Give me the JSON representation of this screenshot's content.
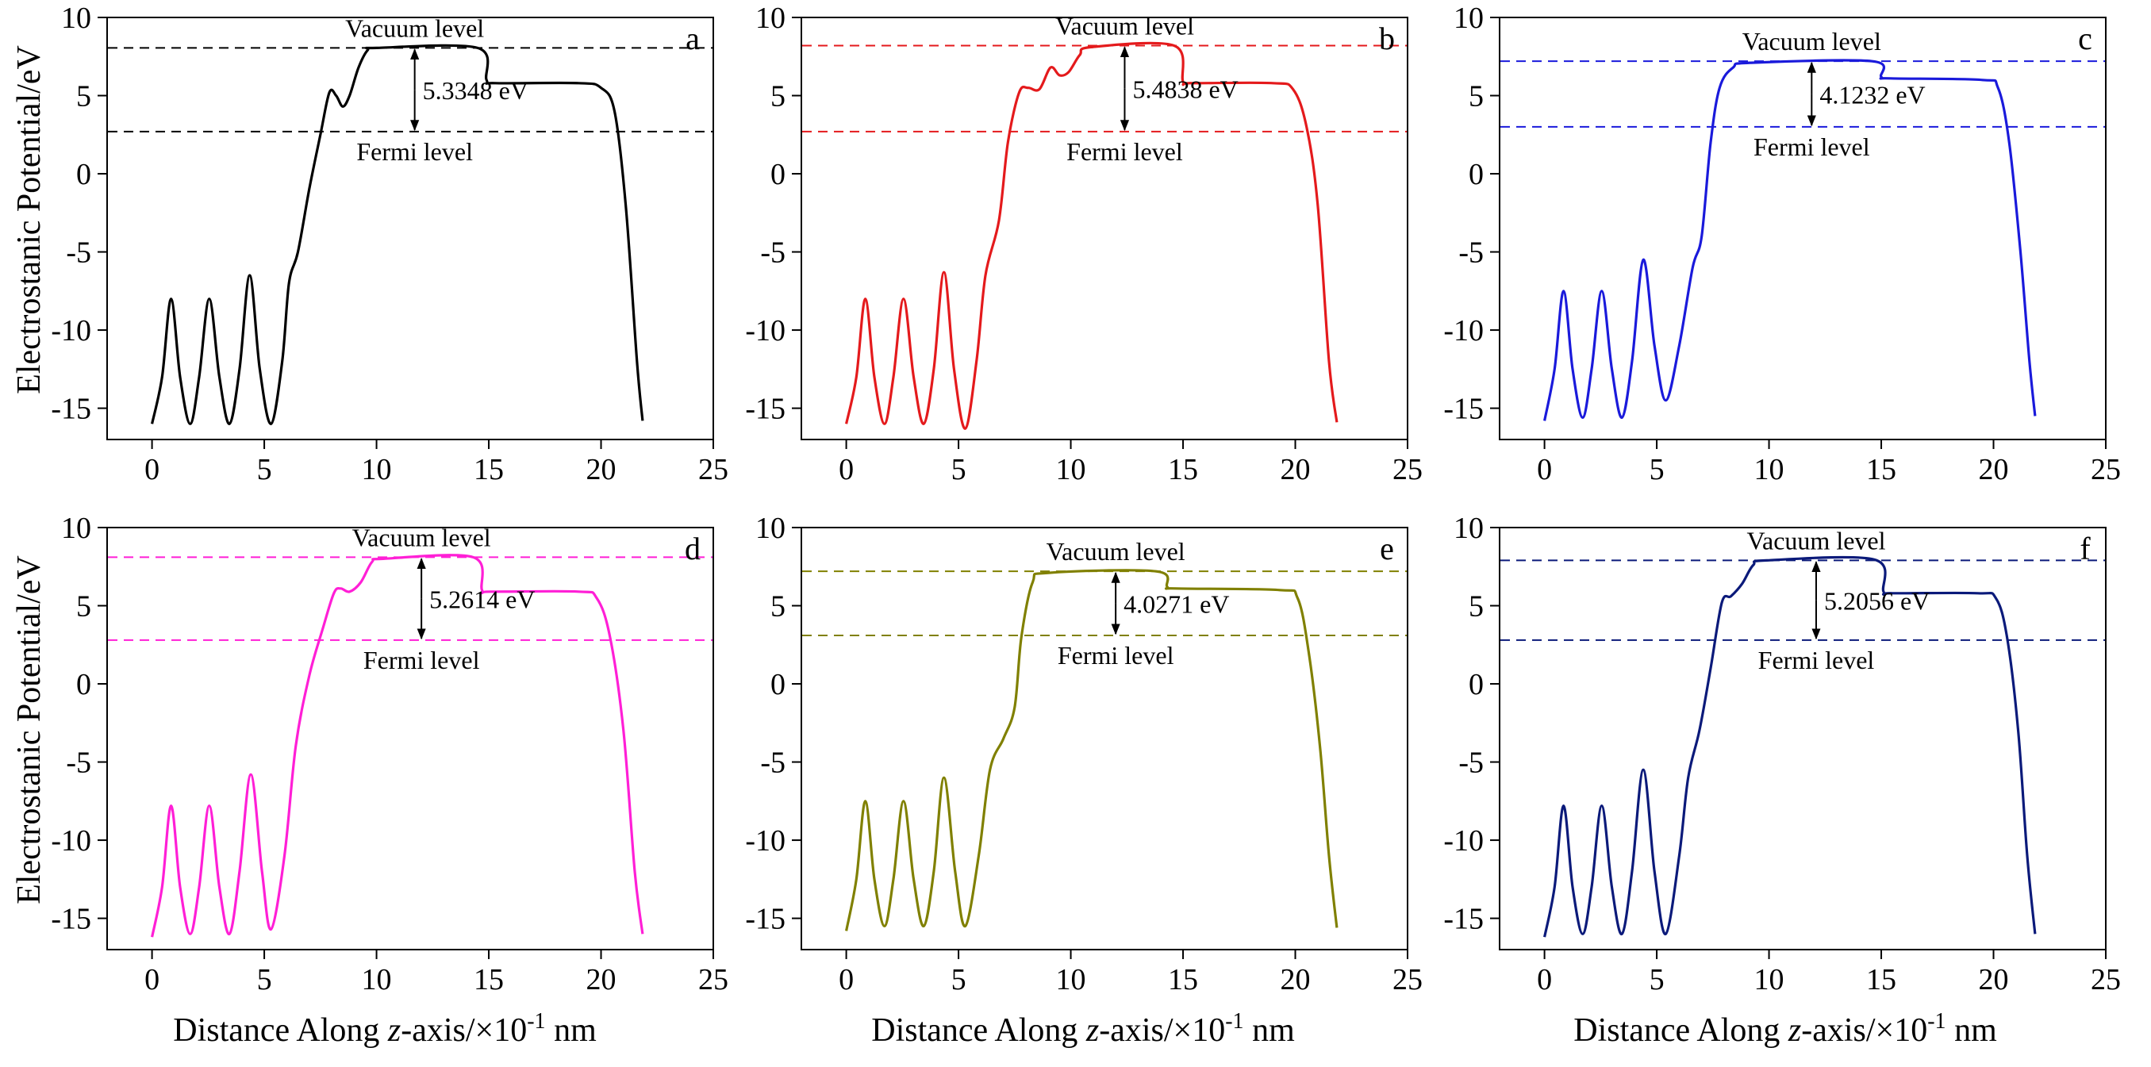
{
  "figure": {
    "ylabel": "Electrostanic Potential/eV",
    "xlabel_parts": [
      "Distance Along ",
      "z",
      "-axis/×10",
      "-1",
      " nm"
    ],
    "x_ticks": [
      0,
      5,
      10,
      15,
      20,
      25
    ],
    "y_ticks": [
      10,
      5,
      0,
      -5,
      -10,
      -15
    ]
  },
  "chart_data": [
    {
      "type": "line",
      "panel": "a",
      "color": "#000000",
      "xlim": [
        -2,
        25
      ],
      "ylim": [
        -17,
        10
      ],
      "vacuum_level": 8.05,
      "fermi_level": 2.7,
      "work_function_label": "5.3348 eV",
      "work_function_x": 11.7,
      "labels": {
        "vacuum": "Vacuum level",
        "fermi": "Fermi level"
      },
      "points": [
        [
          0,
          -16
        ],
        [
          0.45,
          -13
        ],
        [
          0.85,
          -8
        ],
        [
          1.25,
          -13
        ],
        [
          1.7,
          -16
        ],
        [
          2.1,
          -13
        ],
        [
          2.55,
          -8
        ],
        [
          3.0,
          -13
        ],
        [
          3.45,
          -16
        ],
        [
          3.9,
          -12.5
        ],
        [
          4.35,
          -6.5
        ],
        [
          4.8,
          -12.5
        ],
        [
          5.3,
          -16
        ],
        [
          5.8,
          -12
        ],
        [
          6.1,
          -7
        ],
        [
          6.5,
          -5
        ],
        [
          7.0,
          -1
        ],
        [
          7.5,
          2.5
        ],
        [
          7.9,
          5.2
        ],
        [
          8.2,
          5.0
        ],
        [
          8.5,
          4.3
        ],
        [
          8.8,
          5.0
        ],
        [
          9.2,
          6.8
        ],
        [
          9.6,
          7.9
        ],
        [
          10,
          8.05
        ],
        [
          14.5,
          8.05
        ],
        [
          14.9,
          6.0
        ],
        [
          15.3,
          5.8
        ],
        [
          19,
          5.8
        ],
        [
          20,
          5.5
        ],
        [
          20.6,
          4
        ],
        [
          21.1,
          -2
        ],
        [
          21.6,
          -12
        ],
        [
          21.85,
          -15.8
        ]
      ]
    },
    {
      "type": "line",
      "panel": "b",
      "color": "#e41a1c",
      "xlim": [
        -2,
        25
      ],
      "ylim": [
        -17,
        10
      ],
      "vacuum_level": 8.2,
      "fermi_level": 2.7,
      "work_function_label": "5.4838 eV",
      "work_function_x": 12.4,
      "labels": {
        "vacuum": "Vacuum level",
        "fermi": "Fermi level"
      },
      "points": [
        [
          0,
          -16
        ],
        [
          0.45,
          -13
        ],
        [
          0.85,
          -8
        ],
        [
          1.25,
          -13
        ],
        [
          1.7,
          -16
        ],
        [
          2.1,
          -13
        ],
        [
          2.55,
          -8
        ],
        [
          3.0,
          -13
        ],
        [
          3.45,
          -16
        ],
        [
          3.9,
          -12.5
        ],
        [
          4.35,
          -6.3
        ],
        [
          4.8,
          -12.5
        ],
        [
          5.3,
          -16.3
        ],
        [
          5.8,
          -12
        ],
        [
          6.2,
          -6.5
        ],
        [
          6.8,
          -3
        ],
        [
          7.2,
          2
        ],
        [
          7.7,
          5.2
        ],
        [
          8.1,
          5.5
        ],
        [
          8.6,
          5.4
        ],
        [
          9.1,
          6.8
        ],
        [
          9.5,
          6.3
        ],
        [
          9.9,
          6.5
        ],
        [
          10.4,
          7.6
        ],
        [
          10.9,
          8.1
        ],
        [
          14.6,
          8.2
        ],
        [
          15.0,
          5.9
        ],
        [
          15.4,
          5.8
        ],
        [
          19,
          5.8
        ],
        [
          19.9,
          5.4
        ],
        [
          20.5,
          3
        ],
        [
          21.0,
          -2
        ],
        [
          21.5,
          -12
        ],
        [
          21.85,
          -15.9
        ]
      ]
    },
    {
      "type": "line",
      "panel": "c",
      "color": "#1a1adb",
      "xlim": [
        -2,
        25
      ],
      "ylim": [
        -17,
        10
      ],
      "vacuum_level": 7.2,
      "fermi_level": 3.0,
      "work_function_label": "4.1232 eV",
      "work_function_x": 11.9,
      "labels": {
        "vacuum": "Vacuum level",
        "fermi": "Fermi level"
      },
      "points": [
        [
          0,
          -15.8
        ],
        [
          0.45,
          -12.5
        ],
        [
          0.85,
          -7.5
        ],
        [
          1.25,
          -12.5
        ],
        [
          1.7,
          -15.6
        ],
        [
          2.1,
          -12.5
        ],
        [
          2.55,
          -7.5
        ],
        [
          3.0,
          -12.5
        ],
        [
          3.45,
          -15.6
        ],
        [
          3.9,
          -12
        ],
        [
          4.4,
          -5.5
        ],
        [
          4.9,
          -11
        ],
        [
          5.4,
          -14.5
        ],
        [
          6.0,
          -11
        ],
        [
          6.6,
          -6
        ],
        [
          7.0,
          -4
        ],
        [
          7.4,
          2
        ],
        [
          7.8,
          5.5
        ],
        [
          8.4,
          6.8
        ],
        [
          9.2,
          7.1
        ],
        [
          14.6,
          7.2
        ],
        [
          15.0,
          6.2
        ],
        [
          15.4,
          6.1
        ],
        [
          19.5,
          6.0
        ],
        [
          20.2,
          5.5
        ],
        [
          20.7,
          2
        ],
        [
          21.2,
          -5
        ],
        [
          21.6,
          -12
        ],
        [
          21.85,
          -15.5
        ]
      ]
    },
    {
      "type": "line",
      "panel": "d",
      "color": "#ff1fd6",
      "xlim": [
        -2,
        25
      ],
      "ylim": [
        -17,
        10
      ],
      "vacuum_level": 8.1,
      "fermi_level": 2.8,
      "work_function_label": "5.2614 eV",
      "work_function_x": 12.0,
      "labels": {
        "vacuum": "Vacuum level",
        "fermi": "Fermi level"
      },
      "points": [
        [
          0,
          -16.2
        ],
        [
          0.45,
          -13
        ],
        [
          0.85,
          -7.8
        ],
        [
          1.25,
          -13
        ],
        [
          1.7,
          -16
        ],
        [
          2.1,
          -13
        ],
        [
          2.55,
          -7.8
        ],
        [
          3.0,
          -13
        ],
        [
          3.45,
          -16
        ],
        [
          3.9,
          -12
        ],
        [
          4.4,
          -5.8
        ],
        [
          4.9,
          -12
        ],
        [
          5.3,
          -15.7
        ],
        [
          5.9,
          -11
        ],
        [
          6.4,
          -4
        ],
        [
          7.0,
          0.5
        ],
        [
          7.6,
          3.5
        ],
        [
          8.1,
          5.8
        ],
        [
          8.4,
          6.1
        ],
        [
          8.8,
          5.9
        ],
        [
          9.3,
          6.5
        ],
        [
          9.8,
          7.8
        ],
        [
          10.3,
          8.0
        ],
        [
          14.3,
          8.1
        ],
        [
          14.7,
          6.0
        ],
        [
          15.1,
          5.9
        ],
        [
          19,
          5.9
        ],
        [
          19.8,
          5.5
        ],
        [
          20.4,
          3
        ],
        [
          21.0,
          -3
        ],
        [
          21.5,
          -12
        ],
        [
          21.85,
          -16
        ]
      ]
    },
    {
      "type": "line",
      "panel": "e",
      "color": "#808000",
      "xlim": [
        -2,
        25
      ],
      "ylim": [
        -17,
        10
      ],
      "vacuum_level": 7.2,
      "fermi_level": 3.1,
      "work_function_label": "4.0271 eV",
      "work_function_x": 12.0,
      "labels": {
        "vacuum": "Vacuum level",
        "fermi": "Fermi level"
      },
      "points": [
        [
          0,
          -15.8
        ],
        [
          0.45,
          -12.5
        ],
        [
          0.85,
          -7.5
        ],
        [
          1.25,
          -12.5
        ],
        [
          1.7,
          -15.5
        ],
        [
          2.1,
          -12.5
        ],
        [
          2.55,
          -7.5
        ],
        [
          3.0,
          -12.5
        ],
        [
          3.45,
          -15.5
        ],
        [
          3.9,
          -12
        ],
        [
          4.35,
          -6
        ],
        [
          4.85,
          -12
        ],
        [
          5.3,
          -15.5
        ],
        [
          5.9,
          -11
        ],
        [
          6.4,
          -5.5
        ],
        [
          7.0,
          -3.5
        ],
        [
          7.5,
          -1.5
        ],
        [
          7.8,
          3
        ],
        [
          8.3,
          6.5
        ],
        [
          9.0,
          7.1
        ],
        [
          13.8,
          7.2
        ],
        [
          14.3,
          6.2
        ],
        [
          14.7,
          6.1
        ],
        [
          19.3,
          6.0
        ],
        [
          20.1,
          5.5
        ],
        [
          20.6,
          2
        ],
        [
          21.1,
          -4
        ],
        [
          21.5,
          -11
        ],
        [
          21.85,
          -15.6
        ]
      ]
    },
    {
      "type": "line",
      "panel": "f",
      "color": "#0b1a7a",
      "xlim": [
        -2,
        25
      ],
      "ylim": [
        -17,
        10
      ],
      "vacuum_level": 7.9,
      "fermi_level": 2.8,
      "work_function_label": "5.2056 eV",
      "work_function_x": 12.1,
      "labels": {
        "vacuum": "Vacuum level",
        "fermi": "Fermi level"
      },
      "points": [
        [
          0,
          -16.2
        ],
        [
          0.45,
          -13
        ],
        [
          0.85,
          -7.8
        ],
        [
          1.25,
          -13
        ],
        [
          1.7,
          -16
        ],
        [
          2.1,
          -13
        ],
        [
          2.55,
          -7.8
        ],
        [
          3.0,
          -13
        ],
        [
          3.45,
          -16
        ],
        [
          3.9,
          -12
        ],
        [
          4.4,
          -5.5
        ],
        [
          4.9,
          -12
        ],
        [
          5.4,
          -16
        ],
        [
          6.0,
          -11
        ],
        [
          6.4,
          -6
        ],
        [
          6.9,
          -3
        ],
        [
          7.4,
          1
        ],
        [
          7.9,
          5.2
        ],
        [
          8.3,
          5.6
        ],
        [
          8.8,
          6.4
        ],
        [
          9.3,
          7.6
        ],
        [
          9.9,
          7.9
        ],
        [
          14.7,
          7.95
        ],
        [
          15.1,
          5.9
        ],
        [
          15.5,
          5.8
        ],
        [
          19.3,
          5.8
        ],
        [
          20.1,
          5.5
        ],
        [
          20.6,
          3
        ],
        [
          21.1,
          -3
        ],
        [
          21.5,
          -11
        ],
        [
          21.85,
          -16
        ]
      ]
    }
  ]
}
